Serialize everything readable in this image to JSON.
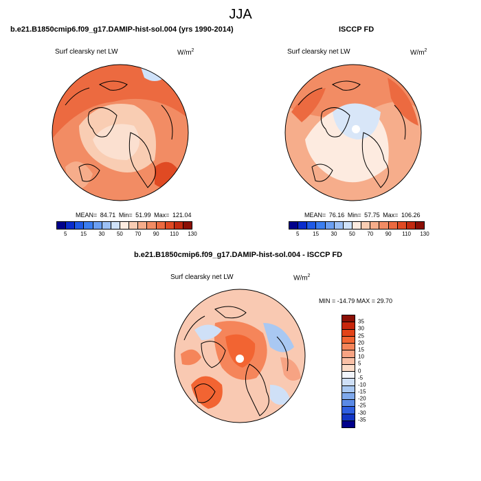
{
  "title": "JJA",
  "panels": [
    {
      "title": "b.e21.B1850cmip6.f09_g17.DAMIP-hist-sol.004 (yrs 1990-2014)",
      "variable": "Surf clearsky net LW",
      "units_base": "W/m",
      "units_exp": "2",
      "mean_label": "MEAN=",
      "mean": "84.71",
      "min_label": "Min=",
      "min": "51.99",
      "max_label": "Max=",
      "max": "121.04"
    },
    {
      "title": "ISCCP FD",
      "variable": "Surf clearsky net LW",
      "units_base": "W/m",
      "units_exp": "2",
      "mean_label": "MEAN=",
      "mean": "76.16",
      "min_label": "Min=",
      "min": "57.75",
      "max_label": "Max=",
      "max": "106.26"
    },
    {
      "title": "b.e21.B1850cmip6.f09_g17.DAMIP-hist-sol.004 - ISCCP FD",
      "variable": "Surf clearsky net LW",
      "units_base": "W/m",
      "units_exp": "2",
      "minmax": "MIN = -14.79 MAX =  29.70"
    }
  ],
  "abs_colorbar": {
    "colors": [
      "#00008b",
      "#0a2ccc",
      "#1f5ae6",
      "#3b7ef0",
      "#6b9ff2",
      "#9cc0f5",
      "#cfe2fa",
      "#fdebe0",
      "#f9cdb3",
      "#f6ad8b",
      "#f28c64",
      "#ec6a40",
      "#e04a23",
      "#c22a10",
      "#8b0f05"
    ],
    "labels": [
      "5",
      "15",
      "30",
      "50",
      "70",
      "90",
      "110",
      "130"
    ]
  },
  "diff_colorbar": {
    "colors": [
      "#8b0f05",
      "#c8260c",
      "#e34419",
      "#f26432",
      "#f5855a",
      "#f7a383",
      "#f9c0a6",
      "#fcdcc8",
      "#f2f5fb",
      "#cfe0f7",
      "#a9c8f2",
      "#7fa9ec",
      "#5a8ae6",
      "#2f5fe0",
      "#1236c4",
      "#00008b"
    ],
    "labels": [
      "35",
      "30",
      "25",
      "20",
      "15",
      "10",
      "5",
      "0",
      "-5",
      "-10",
      "-15",
      "-20",
      "-25",
      "-30",
      "-35"
    ]
  },
  "map_colors": {
    "ocean_bg": "#f8c4a8",
    "warm": "#ee6a40",
    "hot": "#e04a23",
    "light": "#fbe0d0",
    "pale_blue": "#d8e6f8",
    "blue": "#a9c8f2",
    "diff_bg": "#f9c9b2"
  }
}
